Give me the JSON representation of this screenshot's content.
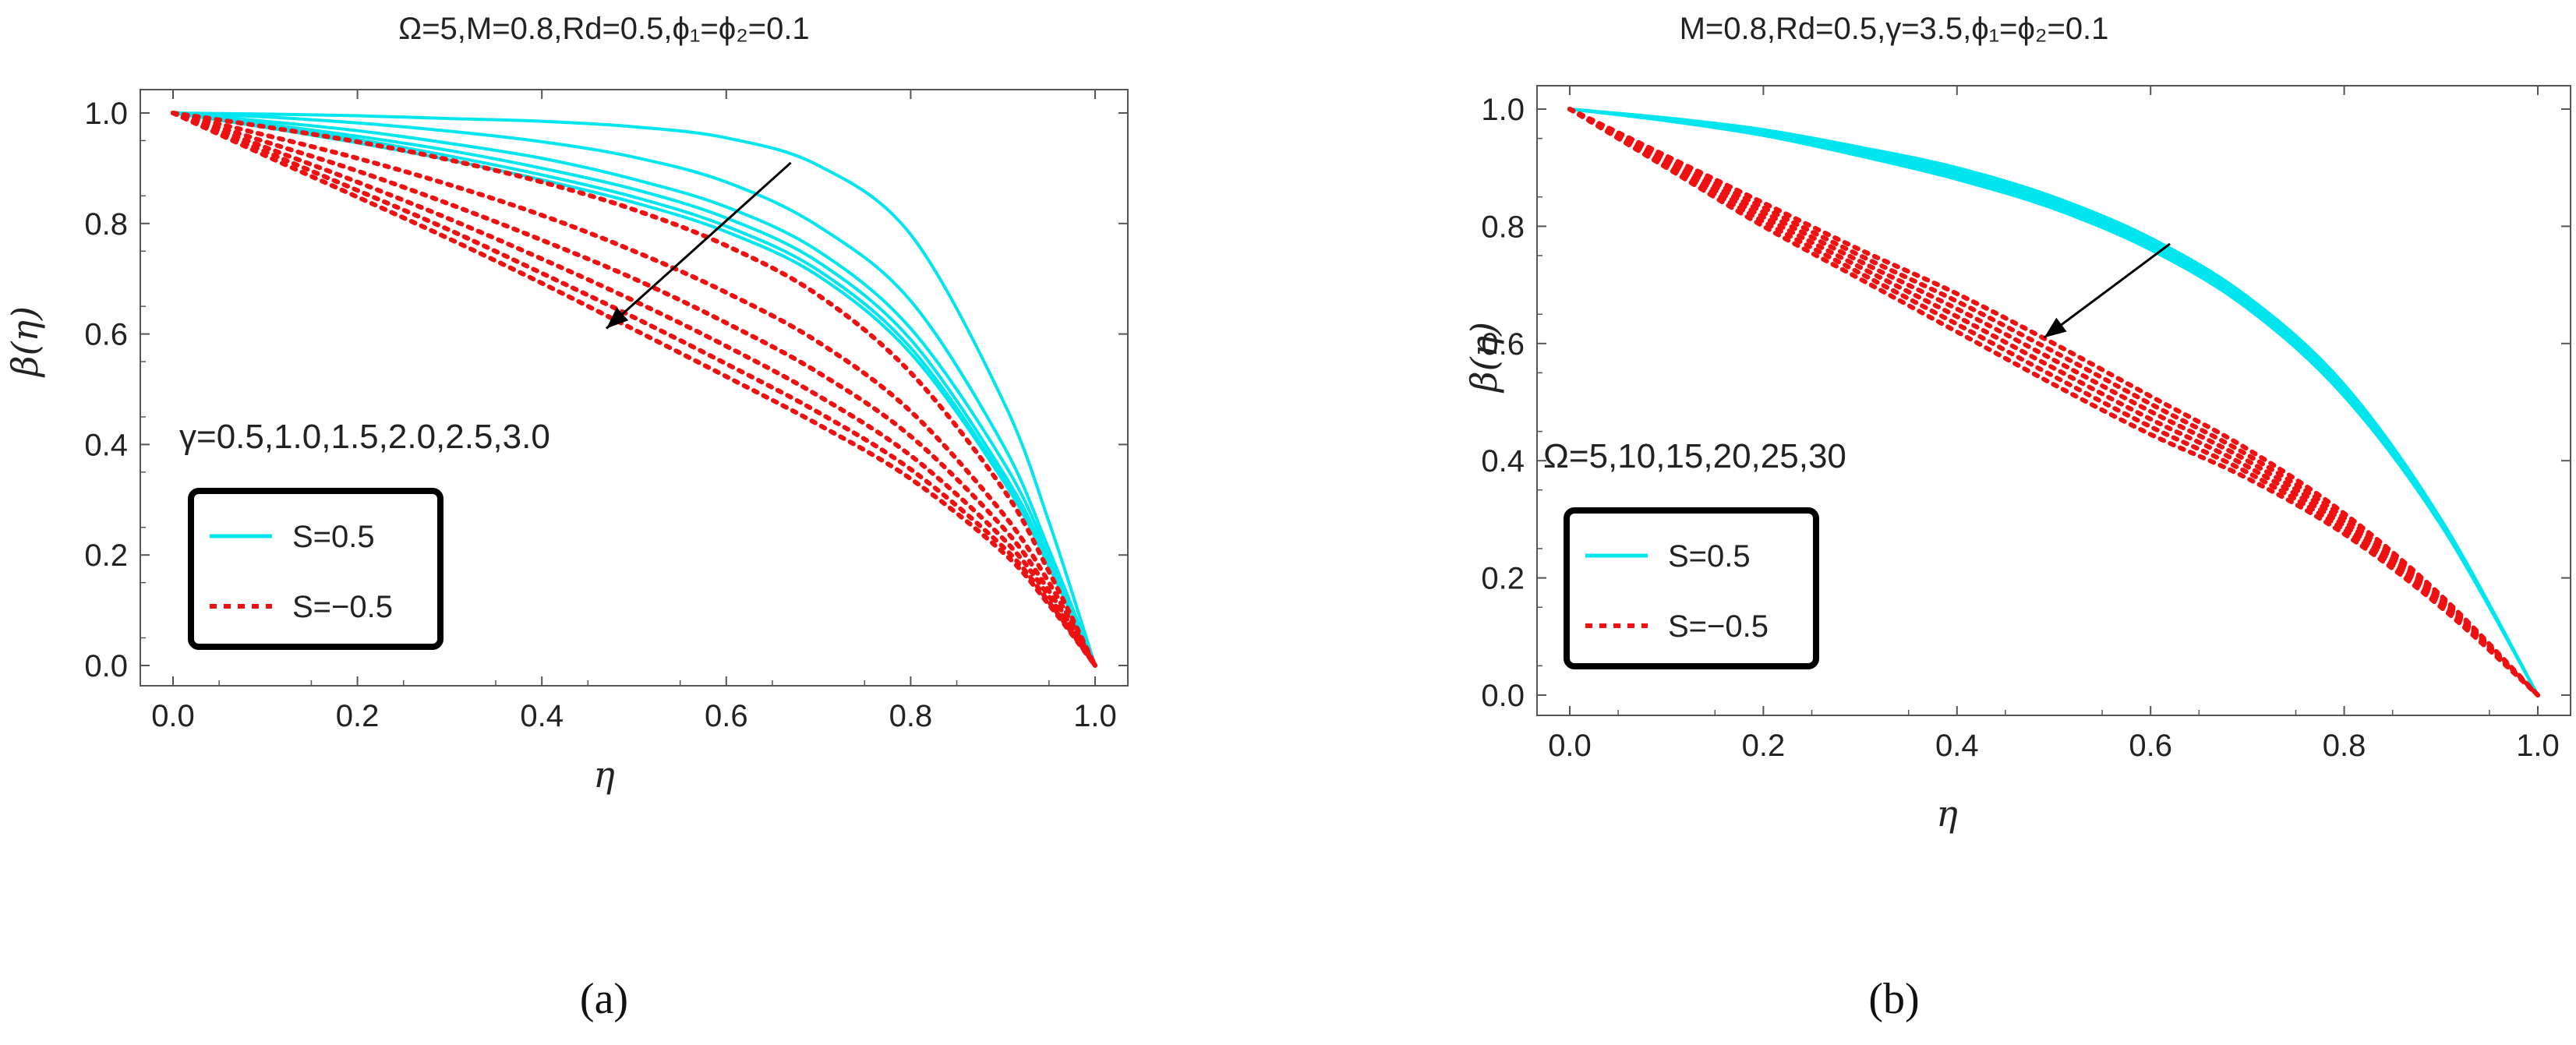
{
  "chart_data": [
    {
      "type": "line",
      "panel_label": "(a)",
      "title": "Ω=5,M=0.8,Rd=0.5,ϕ₁=ϕ₂=0.1",
      "xlabel": "η",
      "ylabel": "β(η)",
      "xlim": [
        0.0,
        1.0
      ],
      "ylim": [
        0.0,
        1.0
      ],
      "xticks": [
        "0.0",
        "0.2",
        "0.4",
        "0.6",
        "0.8",
        "1.0"
      ],
      "yticks": [
        "0.0",
        "0.2",
        "0.4",
        "0.6",
        "0.8",
        "1.0"
      ],
      "annotation": "γ=0.5,1.0,1.5,2.0,2.5,3.0",
      "arrow": {
        "from": [
          0.67,
          0.91
        ],
        "to": [
          0.47,
          0.61
        ],
        "direction": "increasing parameter"
      },
      "legend": {
        "position": "lower-left",
        "entries": [
          {
            "label": "S=0.5",
            "color": "#00e5ee",
            "style": "solid"
          },
          {
            "label": "S=−0.5",
            "color": "#ee1111",
            "style": "dotted"
          }
        ]
      },
      "x": [
        0.0,
        0.1,
        0.2,
        0.3,
        0.4,
        0.5,
        0.6,
        0.7,
        0.8,
        0.9,
        0.95,
        1.0
      ],
      "series": [
        {
          "name": "S=0.5, γ=0.5",
          "group": "S=0.5",
          "values": [
            1.0,
            0.998,
            0.995,
            0.99,
            0.985,
            0.975,
            0.955,
            0.905,
            0.78,
            0.48,
            0.26,
            0.0
          ]
        },
        {
          "name": "S=0.5, γ=1.0",
          "group": "S=0.5",
          "values": [
            1.0,
            0.993,
            0.982,
            0.967,
            0.948,
            0.92,
            0.875,
            0.795,
            0.66,
            0.4,
            0.21,
            0.0
          ]
        },
        {
          "name": "S=0.5, γ=1.5",
          "group": "S=0.5",
          "values": [
            1.0,
            0.985,
            0.968,
            0.945,
            0.918,
            0.88,
            0.83,
            0.75,
            0.61,
            0.37,
            0.2,
            0.0
          ]
        },
        {
          "name": "S=0.5, γ=2.0",
          "group": "S=0.5",
          "values": [
            1.0,
            0.98,
            0.958,
            0.932,
            0.9,
            0.862,
            0.81,
            0.73,
            0.59,
            0.35,
            0.19,
            0.0
          ]
        },
        {
          "name": "S=0.5, γ=2.5",
          "group": "S=0.5",
          "values": [
            1.0,
            0.977,
            0.952,
            0.922,
            0.888,
            0.848,
            0.795,
            0.715,
            0.575,
            0.34,
            0.18,
            0.0
          ]
        },
        {
          "name": "S=0.5, γ=3.0",
          "group": "S=0.5",
          "values": [
            1.0,
            0.974,
            0.946,
            0.915,
            0.879,
            0.838,
            0.785,
            0.705,
            0.565,
            0.335,
            0.18,
            0.0
          ]
        },
        {
          "name": "S=-0.5, γ=0.5",
          "group": "S=-0.5",
          "values": [
            1.0,
            0.975,
            0.948,
            0.915,
            0.875,
            0.825,
            0.76,
            0.67,
            0.53,
            0.32,
            0.17,
            0.0
          ]
        },
        {
          "name": "S=-0.5, γ=1.0",
          "group": "S=-0.5",
          "values": [
            1.0,
            0.96,
            0.918,
            0.87,
            0.815,
            0.75,
            0.675,
            0.585,
            0.46,
            0.275,
            0.15,
            0.0
          ]
        },
        {
          "name": "S=-0.5, γ=1.5",
          "group": "S=-0.5",
          "values": [
            1.0,
            0.948,
            0.895,
            0.835,
            0.77,
            0.7,
            0.62,
            0.53,
            0.415,
            0.25,
            0.135,
            0.0
          ]
        },
        {
          "name": "S=-0.5, γ=2.0",
          "group": "S=-0.5",
          "values": [
            1.0,
            0.938,
            0.875,
            0.808,
            0.736,
            0.66,
            0.578,
            0.488,
            0.38,
            0.23,
            0.125,
            0.0
          ]
        },
        {
          "name": "S=-0.5, γ=2.5",
          "group": "S=-0.5",
          "values": [
            1.0,
            0.93,
            0.86,
            0.788,
            0.71,
            0.63,
            0.546,
            0.458,
            0.355,
            0.215,
            0.115,
            0.0
          ]
        },
        {
          "name": "S=-0.5, γ=3.0",
          "group": "S=-0.5",
          "values": [
            1.0,
            0.923,
            0.848,
            0.772,
            0.692,
            0.608,
            0.523,
            0.436,
            0.338,
            0.205,
            0.11,
            0.0
          ]
        }
      ]
    },
    {
      "type": "line",
      "panel_label": "(b)",
      "title": "M=0.8,Rd=0.5,γ=3.5,ϕ₁=ϕ₂=0.1",
      "xlabel": "η",
      "ylabel": "β(η)",
      "xlim": [
        0.0,
        1.0
      ],
      "ylim": [
        0.0,
        1.0
      ],
      "xticks": [
        "0.0",
        "0.2",
        "0.4",
        "0.6",
        "0.8",
        "1.0"
      ],
      "yticks": [
        "0.0",
        "0.2",
        "0.4",
        "0.6",
        "0.8",
        "1.0"
      ],
      "annotation": "Ω=5,10,15,20,25,30",
      "arrow": {
        "from": [
          0.62,
          0.77
        ],
        "to": [
          0.49,
          0.61
        ],
        "direction": "increasing parameter"
      },
      "legend": {
        "position": "lower-left",
        "entries": [
          {
            "label": "S=0.5",
            "color": "#00e5ee",
            "style": "solid"
          },
          {
            "label": "S=−0.5",
            "color": "#ee1111",
            "style": "dotted"
          }
        ]
      },
      "x": [
        0.0,
        0.1,
        0.2,
        0.3,
        0.4,
        0.5,
        0.6,
        0.7,
        0.8,
        0.9,
        1.0
      ],
      "series": [
        {
          "name": "S=0.5, Ω=5",
          "group": "S=0.5",
          "values": [
            1.0,
            0.985,
            0.965,
            0.935,
            0.9,
            0.85,
            0.78,
            0.68,
            0.53,
            0.3,
            0.0
          ]
        },
        {
          "name": "S=0.5, Ω=10",
          "group": "S=0.5",
          "values": [
            1.0,
            0.984,
            0.963,
            0.932,
            0.896,
            0.846,
            0.776,
            0.676,
            0.526,
            0.298,
            0.0
          ]
        },
        {
          "name": "S=0.5, Ω=15",
          "group": "S=0.5",
          "values": [
            1.0,
            0.983,
            0.961,
            0.929,
            0.892,
            0.842,
            0.772,
            0.672,
            0.522,
            0.296,
            0.0
          ]
        },
        {
          "name": "S=0.5, Ω=20",
          "group": "S=0.5",
          "values": [
            1.0,
            0.982,
            0.959,
            0.926,
            0.888,
            0.838,
            0.768,
            0.668,
            0.518,
            0.294,
            0.0
          ]
        },
        {
          "name": "S=0.5, Ω=25",
          "group": "S=0.5",
          "values": [
            1.0,
            0.981,
            0.957,
            0.923,
            0.884,
            0.834,
            0.764,
            0.664,
            0.514,
            0.292,
            0.0
          ]
        },
        {
          "name": "S=0.5, Ω=30",
          "group": "S=0.5",
          "values": [
            1.0,
            0.98,
            0.955,
            0.92,
            0.88,
            0.83,
            0.76,
            0.66,
            0.51,
            0.29,
            0.0
          ]
        },
        {
          "name": "S=-0.5, Ω=5",
          "group": "S=-0.5",
          "values": [
            1.0,
            0.92,
            0.84,
            0.76,
            0.685,
            0.6,
            0.51,
            0.42,
            0.31,
            0.17,
            0.0
          ]
        },
        {
          "name": "S=-0.5, Ω=10",
          "group": "S=-0.5",
          "values": [
            1.0,
            0.916,
            0.832,
            0.75,
            0.672,
            0.586,
            0.497,
            0.41,
            0.303,
            0.166,
            0.0
          ]
        },
        {
          "name": "S=-0.5, Ω=15",
          "group": "S=-0.5",
          "values": [
            1.0,
            0.912,
            0.824,
            0.74,
            0.659,
            0.572,
            0.484,
            0.4,
            0.296,
            0.162,
            0.0
          ]
        },
        {
          "name": "S=-0.5, Ω=20",
          "group": "S=-0.5",
          "values": [
            1.0,
            0.908,
            0.816,
            0.73,
            0.646,
            0.558,
            0.471,
            0.39,
            0.289,
            0.158,
            0.0
          ]
        },
        {
          "name": "S=-0.5, Ω=25",
          "group": "S=-0.5",
          "values": [
            1.0,
            0.904,
            0.808,
            0.72,
            0.633,
            0.544,
            0.458,
            0.38,
            0.282,
            0.154,
            0.0
          ]
        },
        {
          "name": "S=-0.5, Ω=30",
          "group": "S=-0.5",
          "values": [
            1.0,
            0.9,
            0.8,
            0.71,
            0.62,
            0.53,
            0.445,
            0.37,
            0.275,
            0.15,
            0.0
          ]
        }
      ]
    }
  ],
  "colors": {
    "cyan": "#00e5ee",
    "red": "#ee1111",
    "axis": "#555555",
    "text": "#222222"
  }
}
